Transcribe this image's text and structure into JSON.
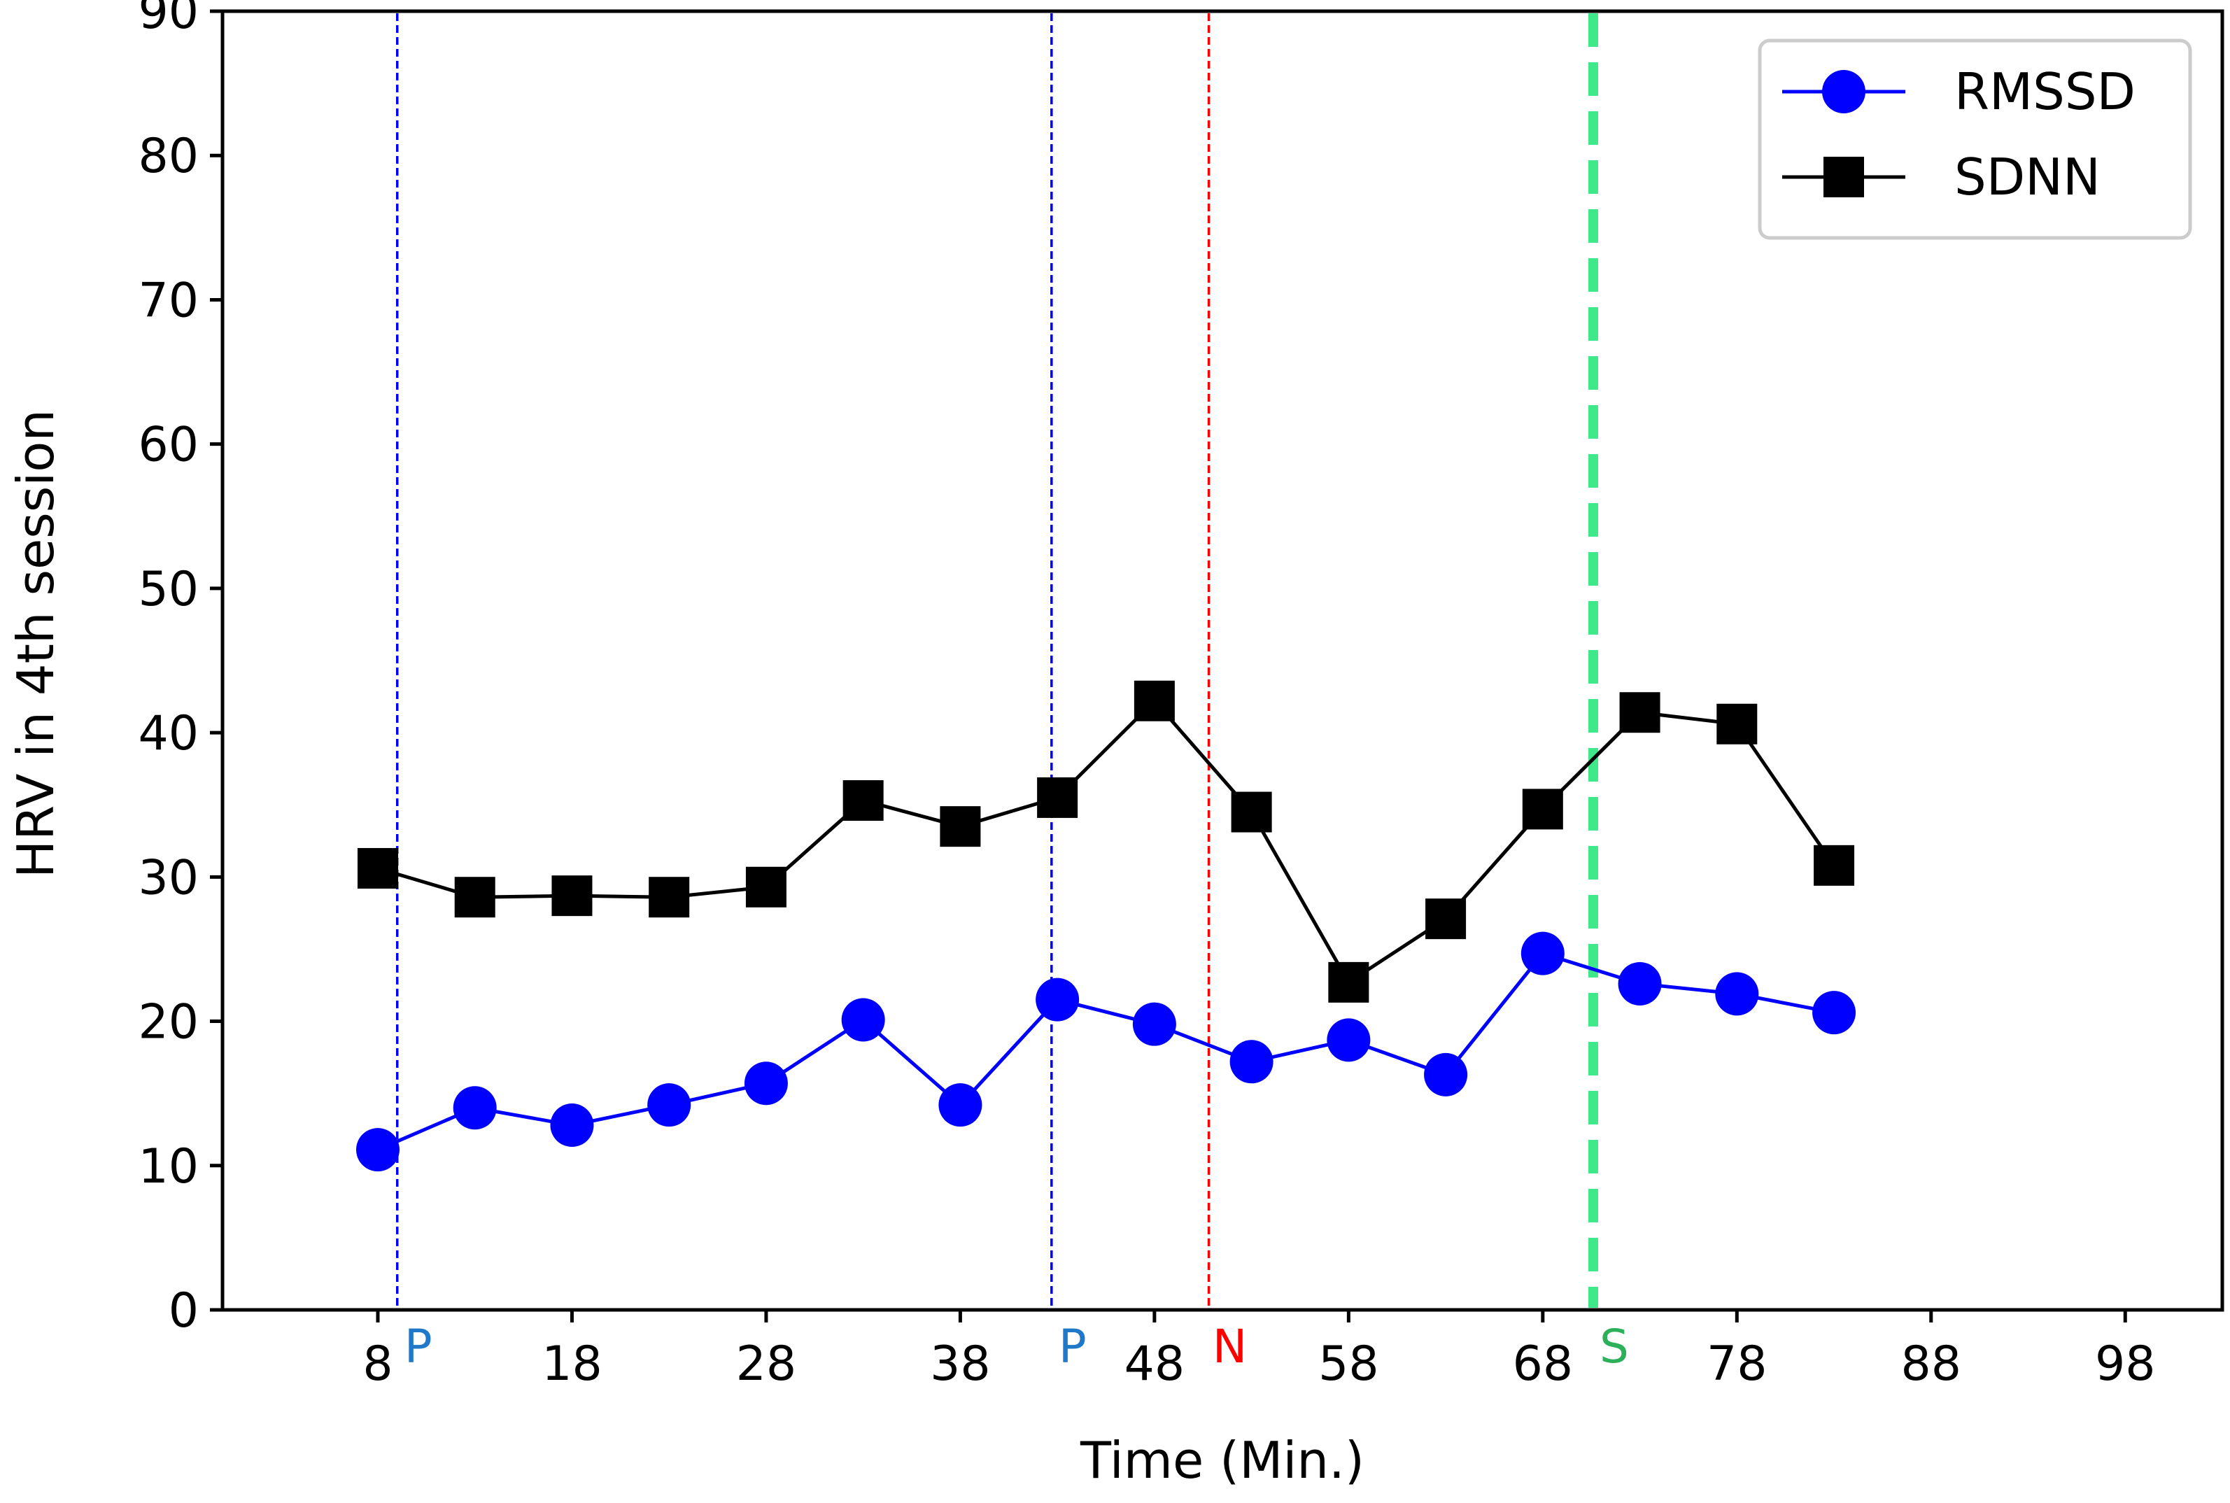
{
  "chart_data": {
    "type": "line",
    "title": "",
    "xlabel": "Time (Min.)",
    "ylabel": "HRV in 4th session",
    "xlim": [
      0,
      103
    ],
    "ylim": [
      0,
      90
    ],
    "xticks": [
      8,
      18,
      28,
      38,
      48,
      58,
      68,
      78,
      88,
      98
    ],
    "yticks": [
      0,
      10,
      20,
      30,
      40,
      50,
      60,
      70,
      80,
      90
    ],
    "x": [
      8,
      13,
      18,
      23,
      28,
      33,
      38,
      43,
      48,
      53,
      58,
      63,
      68,
      73,
      78,
      83
    ],
    "series": [
      {
        "name": "RMSSD",
        "color": "#0000ff",
        "marker": "circle",
        "values": [
          11.1,
          14.0,
          12.8,
          14.2,
          15.7,
          20.1,
          14.2,
          21.5,
          19.8,
          17.2,
          18.7,
          16.3,
          24.7,
          22.6,
          21.9,
          20.6
        ]
      },
      {
        "name": "SDNN",
        "color": "#000000",
        "marker": "square",
        "values": [
          30.6,
          28.6,
          28.7,
          28.6,
          29.3,
          35.3,
          33.5,
          35.5,
          42.2,
          34.5,
          22.7,
          27.1,
          34.7,
          41.4,
          40.6,
          30.8
        ]
      }
    ],
    "vlines": [
      {
        "x": 9.0,
        "label": "P",
        "line_color": "#0000ff",
        "label_color": "#1f78c8",
        "style": "dotted"
      },
      {
        "x": 42.7,
        "label": "P",
        "line_color": "#0000ff",
        "label_color": "#1f78c8",
        "style": "dotted"
      },
      {
        "x": 50.8,
        "label": "N",
        "line_color": "#ff0000",
        "label_color": "#ff0000",
        "style": "dotted"
      },
      {
        "x": 70.6,
        "label": "S",
        "line_color": "#3fe98a",
        "label_color": "#2db05a",
        "style": "thick-dashed"
      }
    ],
    "legend": {
      "position": "top-right",
      "entries": [
        "RMSSD",
        "SDNN"
      ]
    },
    "grid": false
  }
}
